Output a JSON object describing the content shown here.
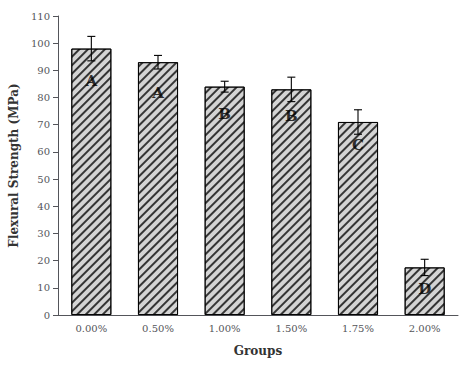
{
  "chart_data": {
    "type": "bar",
    "categories": [
      "0.00%",
      "0.50%",
      "1.00%",
      "1.50%",
      "1.75%",
      "2.00%"
    ],
    "values": [
      98.0,
      93.0,
      84.0,
      83.0,
      71.0,
      17.5
    ],
    "errors": [
      4.5,
      2.5,
      2.0,
      4.5,
      4.5,
      3.0
    ],
    "annotations": [
      {
        "text": "A",
        "category": "0.00%",
        "y": 86.24
      },
      {
        "text": "A",
        "category": "0.50%",
        "y": 81.84
      },
      {
        "text": "B",
        "category": "1.00%",
        "y": 73.92
      },
      {
        "text": "B",
        "category": "1.50%",
        "y": 73.04
      },
      {
        "text": "C",
        "category": "1.75%",
        "y": 62.48
      },
      {
        "text": "D",
        "category": "2.00%",
        "y": 9.625
      }
    ],
    "color": "#d4d4d4",
    "xlabel": "Groups",
    "ylabel": "Flexural Strength (MPa)",
    "ylim": [
      0,
      110
    ],
    "yticks": [
      0,
      10,
      20,
      30,
      40,
      50,
      60,
      70,
      80,
      90,
      100,
      110
    ],
    "grid": false
  }
}
